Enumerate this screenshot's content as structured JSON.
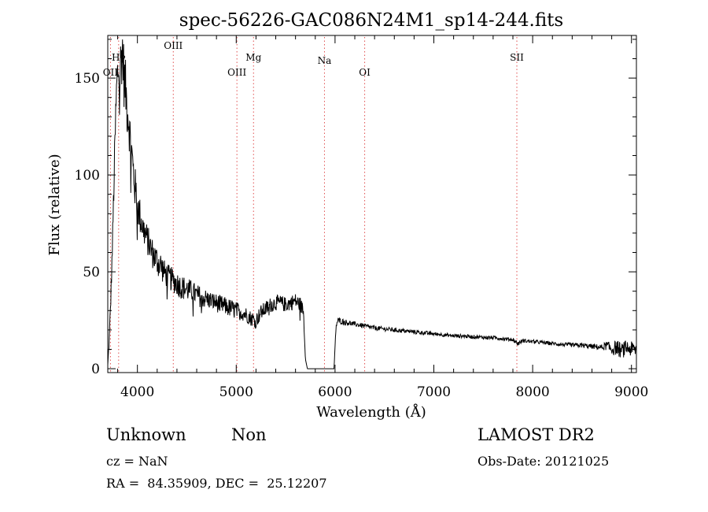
{
  "chart_data": {
    "type": "line",
    "title": "spec-56226-GAC086N24M1_sp14-244.fits",
    "xlabel": "Wavelength (Å)",
    "ylabel": "Flux (relative)",
    "xlim": [
      3700,
      9050
    ],
    "ylim": [
      -2,
      172
    ],
    "xticks": [
      4000,
      5000,
      6000,
      7000,
      8000,
      9000
    ],
    "yticks": [
      0,
      50,
      100,
      150
    ],
    "x_minor_step": 200,
    "y_minor_step": 10,
    "grid": false,
    "line_color": "#000000",
    "lines": [
      {
        "label": "OII",
        "x": 3727,
        "row": 3
      },
      {
        "label": "Hγ",
        "x": 3810,
        "row": 2
      },
      {
        "label": "OIII",
        "x": 4363,
        "row": 0
      },
      {
        "label": "OIII",
        "x": 5007,
        "row": 3
      },
      {
        "label": "Mg",
        "x": 5175,
        "row": 2
      },
      {
        "label": "Na",
        "x": 5893,
        "row": 1
      },
      {
        "label": "OI",
        "x": 6300,
        "row": 3
      },
      {
        "label": "SII",
        "x": 7840,
        "row": 2
      }
    ],
    "marker_color": "#e05050",
    "series": [
      {
        "x": [
          3700,
          3715,
          3730,
          3745,
          3760,
          3775,
          3790,
          3805,
          3820,
          3835,
          3850,
          3865,
          3880,
          3895,
          3910,
          3925,
          3940,
          3955,
          3970,
          3985,
          4000,
          4030,
          4060,
          4090,
          4120,
          4150,
          4180,
          4210,
          4240,
          4270,
          4300,
          4350,
          4400,
          4450,
          4500,
          4550,
          4600,
          4650,
          4700,
          4750,
          4800,
          4850,
          4900,
          4950,
          5000,
          5050,
          5100,
          5150,
          5200,
          5250,
          5300,
          5350,
          5400,
          5450,
          5500,
          5550,
          5600,
          5650,
          5680,
          5700,
          5720,
          5990,
          6010,
          6030,
          6100,
          6200,
          6300,
          6400,
          6500,
          6600,
          6700,
          6800,
          6900,
          7000,
          7100,
          7200,
          7300,
          7400,
          7500,
          7600,
          7700,
          7800,
          7850,
          7900,
          8000,
          8100,
          8200,
          8300,
          8400,
          8500,
          8600,
          8700,
          8750,
          8800,
          8850,
          8900,
          8950,
          9000,
          9050
        ],
        "y": [
          2,
          15,
          35,
          60,
          90,
          120,
          145,
          155,
          150,
          160,
          165,
          150,
          145,
          135,
          130,
          120,
          112,
          104,
          96,
          90,
          84,
          78,
          72,
          68,
          64,
          60,
          57,
          55,
          53,
          50,
          48,
          46,
          44,
          42,
          41,
          40,
          38,
          37,
          36,
          35,
          34,
          33,
          32,
          31,
          30,
          29,
          28,
          26,
          25,
          29,
          31,
          33,
          34,
          34,
          33,
          34,
          35,
          33,
          30,
          5,
          0,
          0,
          22,
          25,
          24,
          23,
          22,
          21,
          20.5,
          20,
          19.5,
          19,
          18.5,
          18,
          17.5,
          17,
          16.8,
          16.5,
          16.2,
          16,
          15.5,
          15,
          13,
          14.5,
          14,
          13.5,
          13,
          12.5,
          12.2,
          12,
          11.5,
          11,
          12,
          10,
          11,
          9,
          11,
          10,
          10
        ],
        "noise": [
          0,
          2,
          3,
          4,
          5,
          7,
          8,
          9,
          10,
          10,
          10,
          10,
          9,
          9,
          8,
          8,
          8,
          7,
          7,
          7,
          6,
          6,
          5,
          5,
          5,
          5,
          5,
          5,
          5,
          4,
          4,
          4,
          4,
          4,
          4,
          3.5,
          3.5,
          3.5,
          3,
          3,
          3,
          3,
          3,
          3,
          3,
          2.5,
          2.5,
          2.5,
          2.5,
          2.5,
          2.5,
          2.5,
          2.5,
          2.5,
          2.5,
          2.5,
          2.5,
          2.5,
          2,
          0,
          0,
          0,
          1,
          1,
          1,
          0.8,
          0.8,
          0.8,
          0.7,
          0.7,
          0.7,
          0.7,
          0.7,
          0.6,
          0.6,
          0.6,
          0.6,
          0.6,
          0.6,
          0.6,
          0.6,
          0.6,
          0.8,
          0.6,
          0.6,
          0.6,
          0.6,
          0.6,
          0.7,
          0.8,
          0.8,
          1,
          1.5,
          2,
          2.5,
          2.5,
          2.5,
          2.5,
          2.5
        ]
      }
    ]
  },
  "info": {
    "class": "Unknown",
    "subclass": "Non",
    "survey": "LAMOST DR2",
    "cz": "cz = NaN",
    "obs_date": "Obs-Date: 20121025",
    "coords": "RA =  84.35909, DEC =  25.12207"
  }
}
